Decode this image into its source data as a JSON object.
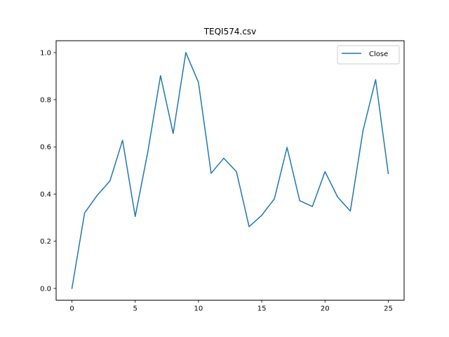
{
  "chart_data": {
    "type": "line",
    "title": "TEQI574.csv",
    "xlabel": "",
    "ylabel": "",
    "xlim": [
      -1.25,
      26.25
    ],
    "ylim": [
      -0.05,
      1.05
    ],
    "x_ticks": [
      0,
      5,
      10,
      15,
      20,
      25
    ],
    "x_tick_labels": [
      "0",
      "5",
      "10",
      "15",
      "20",
      "25"
    ],
    "y_ticks": [
      0.0,
      0.2,
      0.4,
      0.6,
      0.8,
      1.0
    ],
    "y_tick_labels": [
      "0.0",
      "0.2",
      "0.4",
      "0.6",
      "0.8",
      "1.0"
    ],
    "grid": false,
    "legend_position": "top-right",
    "series": [
      {
        "name": "Close",
        "color": "#1f77b4",
        "x": [
          0,
          1,
          2,
          3,
          4,
          5,
          6,
          7,
          8,
          9,
          10,
          11,
          12,
          13,
          14,
          15,
          16,
          17,
          18,
          19,
          20,
          21,
          22,
          23,
          24,
          25
        ],
        "values": [
          0.0,
          0.32,
          0.395,
          0.455,
          0.628,
          0.305,
          0.58,
          0.902,
          0.657,
          1.0,
          0.873,
          0.488,
          0.552,
          0.495,
          0.262,
          0.31,
          0.38,
          0.598,
          0.372,
          0.347,
          0.495,
          0.387,
          0.328,
          0.668,
          0.885,
          0.487
        ]
      }
    ]
  }
}
